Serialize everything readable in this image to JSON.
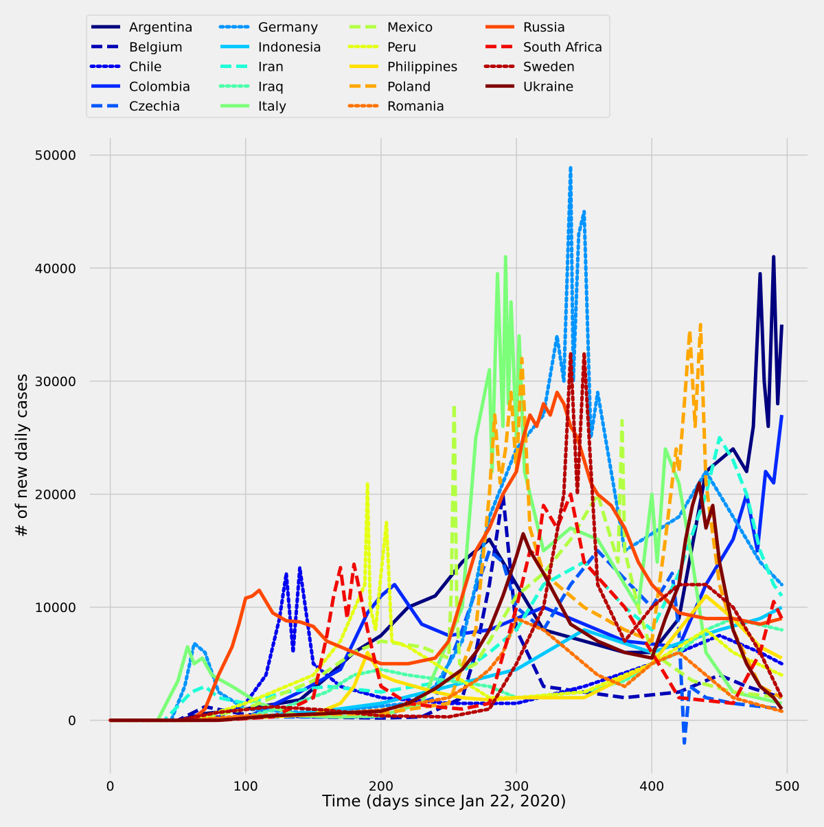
{
  "chart_data": {
    "type": "line",
    "title": "",
    "xlabel": "Time (days since Jan 22, 2020)",
    "ylabel": "# of new daily cases",
    "xlim": [
      -15,
      515
    ],
    "ylim": [
      -4700,
      51500
    ],
    "xticks": [
      0,
      100,
      200,
      300,
      400,
      500
    ],
    "yticks": [
      0,
      10000,
      20000,
      30000,
      40000,
      50000
    ],
    "grid": true,
    "legend_position": "top-left, outside plot, 4 columns",
    "series": [
      {
        "name": "Argentina",
        "color": "#00007f",
        "dash": "solid",
        "x": [
          0,
          50,
          70,
          100,
          140,
          160,
          180,
          200,
          220,
          240,
          260,
          280,
          300,
          320,
          350,
          380,
          400,
          420,
          440,
          460,
          470,
          475,
          480,
          483,
          486,
          490,
          493,
          496
        ],
        "y": [
          0,
          0,
          600,
          1000,
          1800,
          3800,
          6000,
          7500,
          10000,
          11000,
          14000,
          16000,
          12000,
          8000,
          7000,
          6000,
          6000,
          9000,
          22000,
          24000,
          22000,
          26000,
          39500,
          30000,
          26000,
          41000,
          28000,
          35000
        ]
      },
      {
        "name": "Belgium",
        "color": "#0000b6",
        "dash": "dashed",
        "x": [
          0,
          50,
          70,
          100,
          150,
          200,
          230,
          260,
          270,
          280,
          290,
          300,
          320,
          350,
          380,
          420,
          450,
          470,
          496
        ],
        "y": [
          0,
          0,
          1200,
          500,
          300,
          200,
          300,
          2000,
          6000,
          12000,
          20000,
          8000,
          3000,
          2500,
          2000,
          2500,
          4000,
          3000,
          2000
        ]
      },
      {
        "name": "Chile",
        "color": "#0000f1",
        "dash": "dotted",
        "x": [
          0,
          60,
          80,
          100,
          115,
          125,
          130,
          135,
          140,
          150,
          170,
          200,
          250,
          300,
          350,
          400,
          450,
          480,
          496
        ],
        "y": [
          0,
          0,
          300,
          1500,
          4000,
          9000,
          13000,
          6000,
          13500,
          5000,
          3000,
          2000,
          1500,
          1500,
          3000,
          5000,
          7500,
          6000,
          5000
        ]
      },
      {
        "name": "Colombia",
        "color": "#0028ff",
        "dash": "solid",
        "x": [
          0,
          70,
          100,
          140,
          170,
          190,
          200,
          210,
          230,
          250,
          280,
          300,
          320,
          350,
          380,
          420,
          440,
          460,
          470,
          478,
          484,
          490,
          496
        ],
        "y": [
          0,
          0,
          200,
          2500,
          4500,
          9500,
          11000,
          12000,
          8500,
          7500,
          8000,
          9000,
          10000,
          8500,
          7000,
          6500,
          12000,
          16000,
          20000,
          15000,
          22000,
          21000,
          27000
        ]
      },
      {
        "name": "Czechia",
        "color": "#0058ff",
        "dash": "dashed",
        "x": [
          0,
          60,
          100,
          200,
          240,
          260,
          280,
          290,
          300,
          320,
          340,
          360,
          400,
          415,
          420,
          424,
          428,
          440,
          460,
          496
        ],
        "y": [
          0,
          0,
          300,
          300,
          2000,
          8000,
          15000,
          14000,
          10000,
          8000,
          12000,
          15000,
          10000,
          13000,
          8000,
          -2000,
          3000,
          2000,
          1500,
          1000
        ]
      },
      {
        "name": "Germany",
        "color": "#0094ff",
        "dash": "dotted",
        "x": [
          0,
          45,
          55,
          62,
          70,
          80,
          100,
          140,
          180,
          220,
          240,
          260,
          270,
          280,
          300,
          320,
          330,
          335,
          340,
          342,
          346,
          350,
          355,
          360,
          380,
          420,
          440,
          460,
          480,
          496
        ],
        "y": [
          0,
          0,
          3000,
          6800,
          6000,
          2500,
          1000,
          700,
          1000,
          1500,
          3000,
          7000,
          12000,
          18000,
          24000,
          27000,
          34000,
          30000,
          49000,
          30000,
          43000,
          45000,
          25000,
          29000,
          15000,
          18000,
          22000,
          18000,
          14000,
          12000
        ]
      },
      {
        "name": "Indonesia",
        "color": "#00c8ff",
        "dash": "solid",
        "x": [
          0,
          50,
          100,
          150,
          200,
          250,
          300,
          350,
          400,
          450,
          480,
          496
        ],
        "y": [
          0,
          0,
          300,
          700,
          1500,
          3000,
          4500,
          8000,
          6000,
          8000,
          9000,
          10000
        ]
      },
      {
        "name": "Iran",
        "color": "#1fffd7",
        "dash": "dashed",
        "x": [
          0,
          40,
          60,
          70,
          80,
          100,
          130,
          160,
          200,
          250,
          280,
          300,
          320,
          350,
          380,
          400,
          420,
          440,
          450,
          460,
          470,
          480,
          490,
          496
        ],
        "y": [
          0,
          0,
          2500,
          3000,
          2000,
          1500,
          2500,
          3000,
          2500,
          3500,
          6000,
          8000,
          12000,
          14000,
          10000,
          8000,
          13000,
          20000,
          25000,
          23000,
          20000,
          15000,
          12000,
          11000
        ]
      },
      {
        "name": "Iraq",
        "color": "#4cffaa",
        "dash": "dotted",
        "x": [
          0,
          60,
          100,
          130,
          160,
          180,
          200,
          220,
          250,
          280,
          300,
          350,
          380,
          400,
          420,
          440,
          460,
          496
        ],
        "y": [
          0,
          0,
          300,
          1200,
          2500,
          4000,
          4500,
          4000,
          3500,
          3000,
          2000,
          2500,
          3500,
          5000,
          6000,
          8000,
          9000,
          8000
        ]
      },
      {
        "name": "Italy",
        "color": "#7cff79",
        "dash": "solid",
        "x": [
          0,
          35,
          50,
          57,
          62,
          68,
          75,
          90,
          110,
          140,
          170,
          200,
          230,
          260,
          270,
          280,
          282,
          286,
          290,
          292,
          294,
          296,
          300,
          302,
          306,
          310,
          320,
          340,
          360,
          380,
          390,
          400,
          404,
          410,
          420,
          430,
          440,
          460,
          496
        ],
        "y": [
          0,
          0,
          3500,
          6500,
          5000,
          5500,
          4000,
          3000,
          1500,
          400,
          300,
          400,
          1500,
          10000,
          25000,
          31000,
          22000,
          39500,
          26000,
          41000,
          28000,
          37000,
          25000,
          34000,
          22000,
          20000,
          15000,
          17000,
          16000,
          12000,
          10000,
          20000,
          14000,
          24000,
          21000,
          14000,
          6000,
          2500,
          1500
        ]
      },
      {
        "name": "Mexico",
        "color": "#b3ff43",
        "dash": "dashed",
        "x": [
          0,
          60,
          100,
          150,
          180,
          200,
          230,
          250,
          252,
          254,
          256,
          258,
          262,
          270,
          290,
          300,
          320,
          340,
          360,
          375,
          378,
          380,
          390,
          400,
          430,
          460,
          496
        ],
        "y": [
          0,
          0,
          1000,
          3500,
          6000,
          7000,
          6500,
          5500,
          12000,
          28000,
          10000,
          5000,
          4500,
          5000,
          9000,
          11000,
          13000,
          16000,
          20000,
          14000,
          26500,
          15000,
          10000,
          6000,
          3500,
          2500,
          2000
        ]
      },
      {
        "name": "Peru",
        "color": "#e4ff13",
        "dash": "dotted",
        "x": [
          0,
          60,
          100,
          150,
          170,
          188,
          190,
          192,
          196,
          200,
          204,
          208,
          220,
          240,
          260,
          280,
          300,
          350,
          400,
          440,
          460,
          496
        ],
        "y": [
          0,
          0,
          1500,
          4000,
          7000,
          12000,
          21000,
          10000,
          8000,
          13000,
          17500,
          7000,
          6500,
          5000,
          3500,
          2000,
          2000,
          2500,
          5000,
          8000,
          6000,
          4000
        ]
      },
      {
        "name": "Philippines",
        "color": "#ffe000",
        "dash": "solid",
        "x": [
          0,
          70,
          100,
          150,
          170,
          180,
          190,
          200,
          210,
          240,
          260,
          280,
          300,
          350,
          400,
          440,
          460,
          480,
          496
        ],
        "y": [
          0,
          0,
          200,
          500,
          1500,
          3000,
          6000,
          4000,
          3500,
          2500,
          2000,
          1800,
          2000,
          2000,
          5000,
          11000,
          9000,
          6500,
          5500
        ]
      },
      {
        "name": "Poland",
        "color": "#ffa700",
        "dash": "dashed",
        "x": [
          0,
          60,
          100,
          150,
          200,
          250,
          270,
          280,
          284,
          288,
          292,
          296,
          300,
          304,
          310,
          320,
          350,
          380,
          400,
          410,
          418,
          420,
          424,
          428,
          432,
          436,
          440,
          450,
          460,
          480,
          496
        ],
        "y": [
          0,
          0,
          300,
          500,
          600,
          1500,
          8000,
          20000,
          27000,
          21000,
          24000,
          29000,
          22000,
          32000,
          17000,
          13000,
          10000,
          8000,
          7000,
          16000,
          24000,
          22000,
          28000,
          34500,
          26000,
          35000,
          21000,
          12000,
          8000,
          3000,
          2000
        ]
      },
      {
        "name": "Romania",
        "color": "#ff7300",
        "dash": "dotted",
        "x": [
          0,
          60,
          100,
          150,
          200,
          250,
          270,
          280,
          290,
          300,
          320,
          340,
          360,
          380,
          400,
          420,
          440,
          460,
          496
        ],
        "y": [
          0,
          0,
          400,
          500,
          900,
          2000,
          3500,
          4500,
          6000,
          9000,
          8000,
          6000,
          4000,
          3000,
          5000,
          6000,
          4000,
          2000,
          800
        ]
      },
      {
        "name": "Russia",
        "color": "#ff4800",
        "dash": "solid",
        "x": [
          0,
          60,
          70,
          80,
          90,
          95,
          100,
          105,
          110,
          120,
          130,
          140,
          150,
          160,
          170,
          180,
          200,
          220,
          240,
          250,
          260,
          270,
          280,
          290,
          300,
          305,
          310,
          315,
          320,
          325,
          330,
          335,
          340,
          345,
          350,
          355,
          360,
          370,
          380,
          390,
          400,
          420,
          440,
          460,
          480,
          496
        ],
        "y": [
          0,
          0,
          1000,
          4000,
          6500,
          8500,
          10800,
          11000,
          11500,
          9500,
          8800,
          8700,
          8300,
          7000,
          6500,
          6000,
          5000,
          5000,
          5500,
          7000,
          11000,
          15000,
          17000,
          20000,
          22000,
          25000,
          27000,
          26000,
          28000,
          27000,
          29000,
          28000,
          26000,
          25000,
          23000,
          21000,
          20000,
          19000,
          17000,
          14000,
          12000,
          9500,
          9000,
          9000,
          8500,
          9000
        ]
      },
      {
        "name": "South Africa",
        "color": "#f10800",
        "dash": "dashed",
        "x": [
          0,
          80,
          120,
          150,
          160,
          165,
          170,
          175,
          180,
          185,
          190,
          200,
          220,
          240,
          260,
          280,
          300,
          310,
          315,
          320,
          330,
          340,
          350,
          380,
          420,
          460,
          480,
          490,
          496
        ],
        "y": [
          0,
          0,
          300,
          2000,
          7500,
          11000,
          13500,
          9000,
          13800,
          11000,
          8000,
          3000,
          1500,
          1200,
          1000,
          1500,
          10000,
          15000,
          14500,
          19000,
          17000,
          20000,
          14000,
          10000,
          2000,
          1500,
          6000,
          10500,
          9000
        ]
      },
      {
        "name": "Sweden",
        "color": "#b60000",
        "dash": "dotted",
        "x": [
          0,
          50,
          80,
          120,
          160,
          200,
          250,
          280,
          300,
          320,
          335,
          340,
          345,
          350,
          360,
          380,
          400,
          420,
          440,
          460,
          480,
          496
        ],
        "y": [
          0,
          0,
          700,
          1200,
          900,
          400,
          300,
          1000,
          5000,
          10000,
          20000,
          32500,
          20000,
          32500,
          12000,
          7000,
          10000,
          12000,
          12000,
          10000,
          6000,
          2000
        ]
      },
      {
        "name": "Ukraine",
        "color": "#7f0000",
        "dash": "solid",
        "x": [
          0,
          80,
          120,
          160,
          200,
          220,
          240,
          260,
          270,
          280,
          290,
          300,
          305,
          310,
          320,
          340,
          360,
          380,
          400,
          410,
          420,
          425,
          430,
          435,
          440,
          445,
          450,
          460,
          470,
          480,
          490,
          496
        ],
        "y": [
          0,
          0,
          400,
          600,
          800,
          1500,
          2800,
          4500,
          6000,
          8000,
          11000,
          14500,
          16500,
          15000,
          13000,
          8500,
          7000,
          6000,
          5500,
          9000,
          12000,
          16000,
          19000,
          21000,
          17000,
          19000,
          14000,
          8000,
          5000,
          3000,
          2000,
          1000
        ]
      }
    ]
  }
}
